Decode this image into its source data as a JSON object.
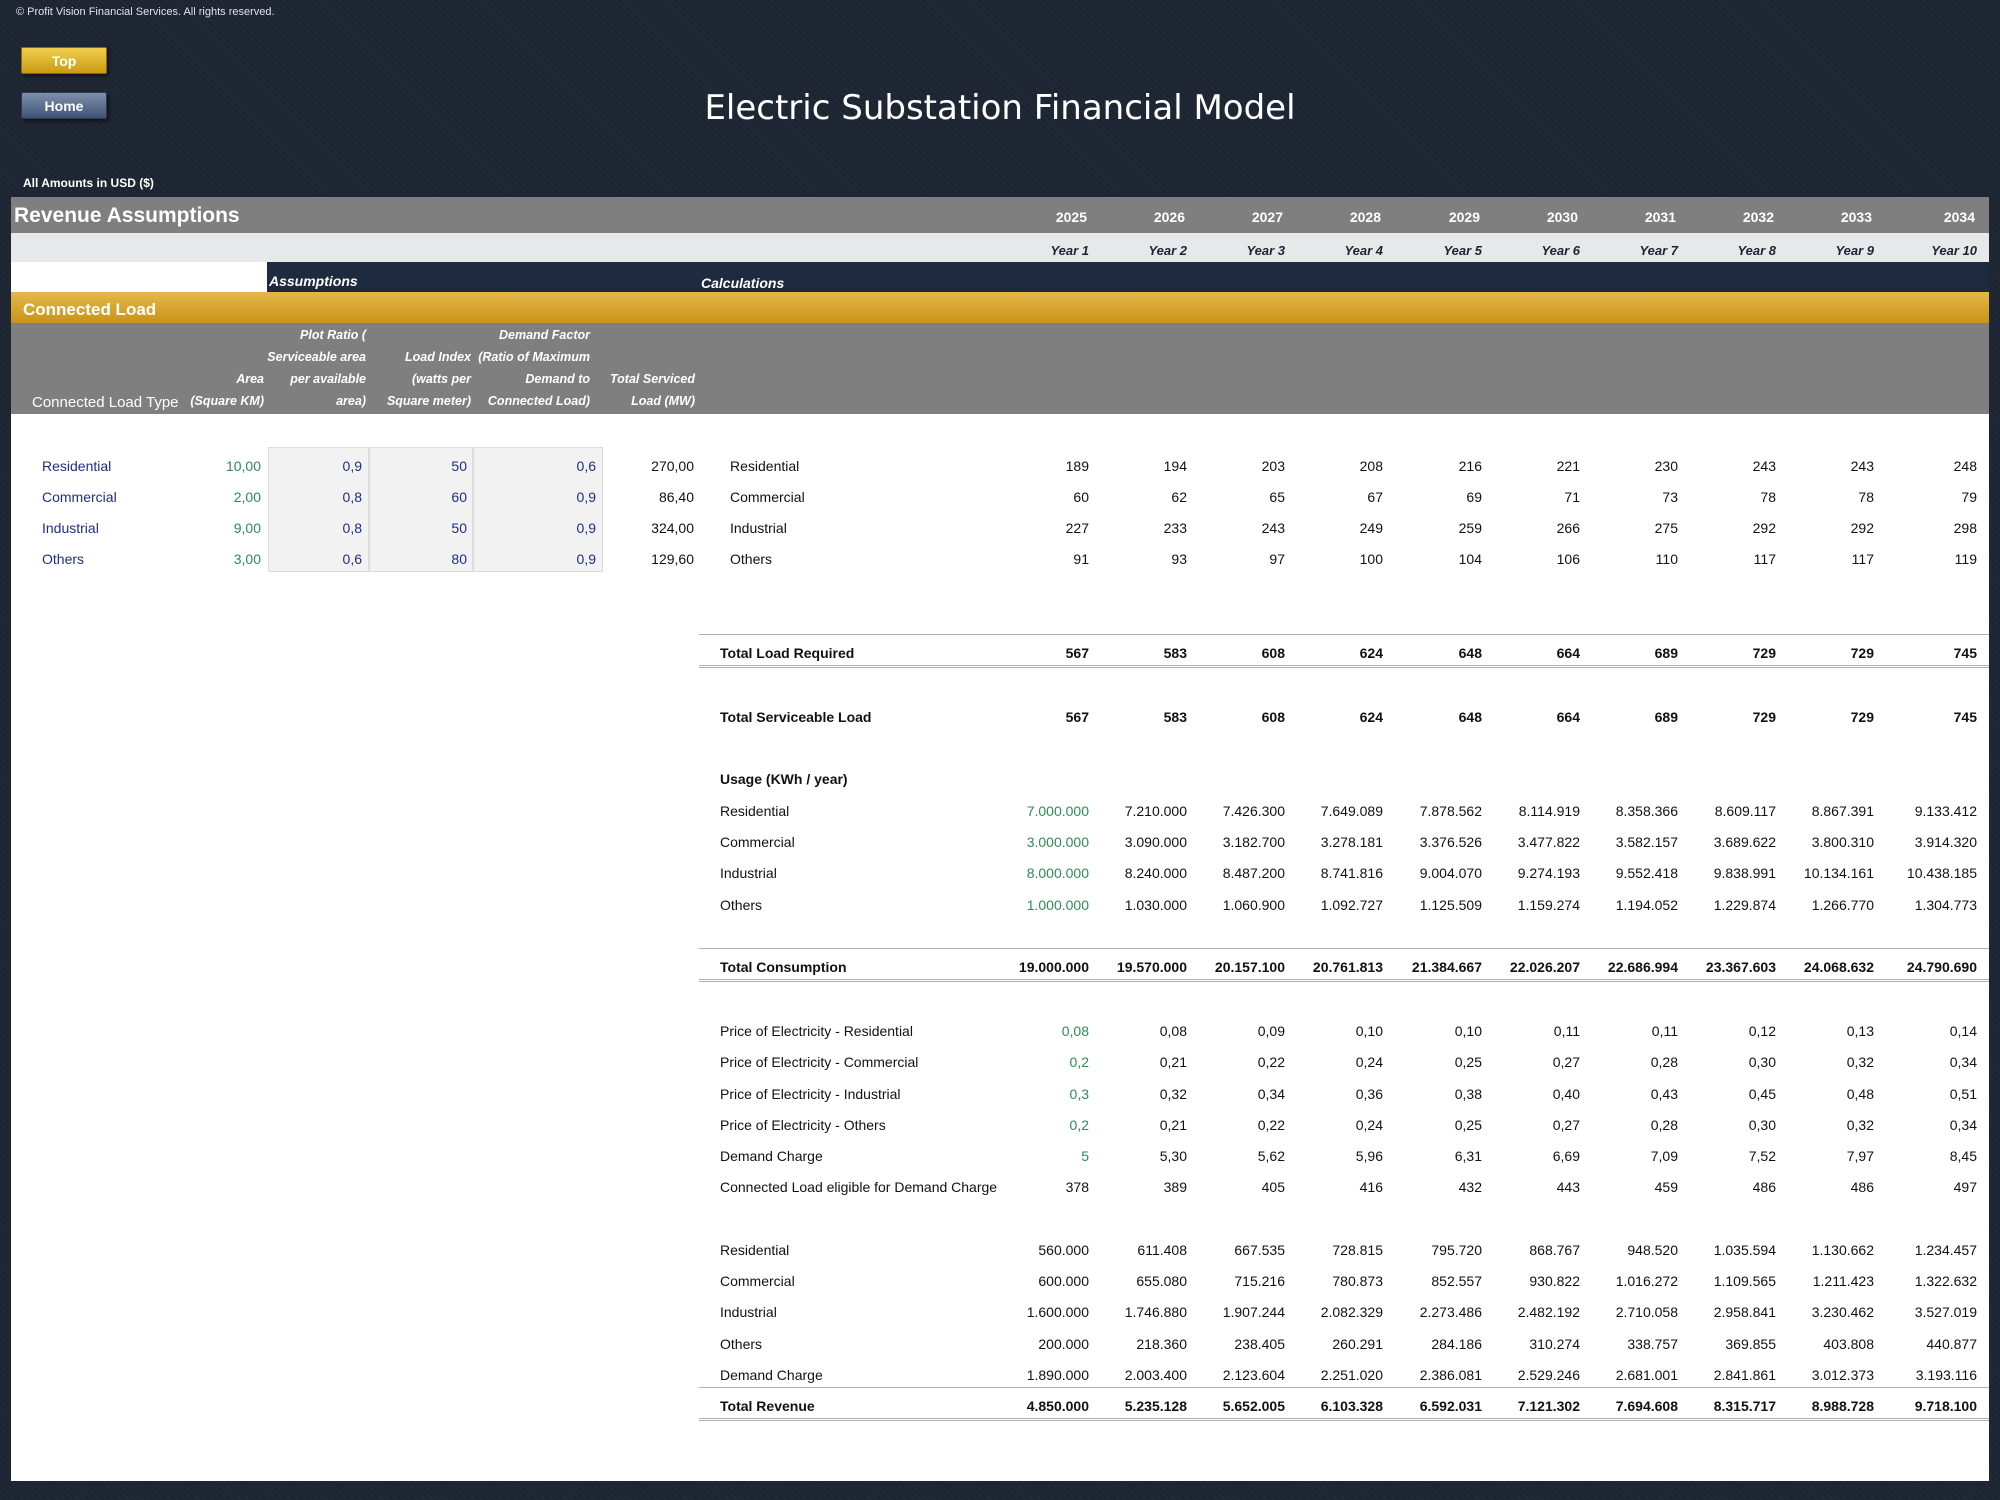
{
  "copyright": "© Profit Vision Financial Services. All rights reserved.",
  "buttons": {
    "top": "Top",
    "home": "Home"
  },
  "title": "Electric Substation Financial Model",
  "amounts_label": "All Amounts in  USD ($)",
  "section_title": "Revenue Assumptions",
  "years": [
    "2025",
    "2026",
    "2027",
    "2028",
    "2029",
    "2030",
    "2031",
    "2032",
    "2033",
    "2034"
  ],
  "year_labels": [
    "Year 1",
    "Year 2",
    "Year 3",
    "Year 4",
    "Year 5",
    "Year 6",
    "Year 7",
    "Year 8",
    "Year 9",
    "Year 10"
  ],
  "assumptions_label": "Assumptions",
  "calculations_label": "Calculations",
  "subsection": "Connected Load",
  "col_headers": {
    "type": "Connected Load Type",
    "area": [
      "Area",
      "(Square KM)"
    ],
    "plot": [
      "Plot Ratio (",
      "Serviceable area",
      "per available",
      "area)"
    ],
    "load_index": [
      "Load Index",
      "(watts per",
      "Square meter)"
    ],
    "demand": [
      "Demand Factor",
      "(Ratio of Maximum",
      "Demand to",
      "Connected Load)"
    ],
    "total": [
      "Total Serviced",
      "Load (MW)"
    ]
  },
  "assumptions": [
    {
      "type": "Residential",
      "area": "10,00",
      "plot": "0,9",
      "index": "50",
      "demand": "0,6",
      "total": "270,00"
    },
    {
      "type": "Commercial",
      "area": "2,00",
      "plot": "0,8",
      "index": "60",
      "demand": "0,9",
      "total": "86,40"
    },
    {
      "type": "Industrial",
      "area": "9,00",
      "plot": "0,8",
      "index": "50",
      "demand": "0,9",
      "total": "324,00"
    },
    {
      "type": "Others",
      "area": "3,00",
      "plot": "0,6",
      "index": "80",
      "demand": "0,9",
      "total": "129,60"
    }
  ],
  "load_rows": [
    {
      "label": "Residential",
      "values": [
        "189",
        "194",
        "203",
        "208",
        "216",
        "221",
        "230",
        "243",
        "243",
        "248"
      ]
    },
    {
      "label": "Commercial",
      "values": [
        "60",
        "62",
        "65",
        "67",
        "69",
        "71",
        "73",
        "78",
        "78",
        "79"
      ]
    },
    {
      "label": "Industrial",
      "values": [
        "227",
        "233",
        "243",
        "249",
        "259",
        "266",
        "275",
        "292",
        "292",
        "298"
      ]
    },
    {
      "label": "Others",
      "values": [
        "91",
        "93",
        "97",
        "100",
        "104",
        "106",
        "110",
        "117",
        "117",
        "119"
      ]
    }
  ],
  "total_load": {
    "label": "Total Load Required",
    "values": [
      "567",
      "583",
      "608",
      "624",
      "648",
      "664",
      "689",
      "729",
      "729",
      "745"
    ]
  },
  "total_serviceable": {
    "label": "Total Serviceable Load",
    "values": [
      "567",
      "583",
      "608",
      "624",
      "648",
      "664",
      "689",
      "729",
      "729",
      "745"
    ]
  },
  "usage_title": "Usage (KWh / year)",
  "usage_rows": [
    {
      "label": "Residential",
      "values": [
        "7.000.000",
        "7.210.000",
        "7.426.300",
        "7.649.089",
        "7.878.562",
        "8.114.919",
        "8.358.366",
        "8.609.117",
        "8.867.391",
        "9.133.412"
      ]
    },
    {
      "label": "Commercial",
      "values": [
        "3.000.000",
        "3.090.000",
        "3.182.700",
        "3.278.181",
        "3.376.526",
        "3.477.822",
        "3.582.157",
        "3.689.622",
        "3.800.310",
        "3.914.320"
      ]
    },
    {
      "label": "Industrial",
      "values": [
        "8.000.000",
        "8.240.000",
        "8.487.200",
        "8.741.816",
        "9.004.070",
        "9.274.193",
        "9.552.418",
        "9.838.991",
        "10.134.161",
        "10.438.185"
      ]
    },
    {
      "label": "Others",
      "values": [
        "1.000.000",
        "1.030.000",
        "1.060.900",
        "1.092.727",
        "1.125.509",
        "1.159.274",
        "1.194.052",
        "1.229.874",
        "1.266.770",
        "1.304.773"
      ]
    }
  ],
  "total_consumption": {
    "label": "Total Consumption",
    "values": [
      "19.000.000",
      "19.570.000",
      "20.157.100",
      "20.761.813",
      "21.384.667",
      "22.026.207",
      "22.686.994",
      "23.367.603",
      "24.068.632",
      "24.790.690"
    ]
  },
  "price_rows": [
    {
      "label": "Price of Electricity - Residential",
      "values": [
        "0,08",
        "0,08",
        "0,09",
        "0,10",
        "0,10",
        "0,11",
        "0,11",
        "0,12",
        "0,13",
        "0,14"
      ]
    },
    {
      "label": "Price of Electricity - Commercial",
      "values": [
        "0,2",
        "0,21",
        "0,22",
        "0,24",
        "0,25",
        "0,27",
        "0,28",
        "0,30",
        "0,32",
        "0,34"
      ]
    },
    {
      "label": "Price of Electricity - Industrial",
      "values": [
        "0,3",
        "0,32",
        "0,34",
        "0,36",
        "0,38",
        "0,40",
        "0,43",
        "0,45",
        "0,48",
        "0,51"
      ]
    },
    {
      "label": "Price of Electricity - Others",
      "values": [
        "0,2",
        "0,21",
        "0,22",
        "0,24",
        "0,25",
        "0,27",
        "0,28",
        "0,30",
        "0,32",
        "0,34"
      ]
    },
    {
      "label": "Demand Charge",
      "values": [
        "5",
        "5,30",
        "5,62",
        "5,96",
        "6,31",
        "6,69",
        "7,09",
        "7,52",
        "7,97",
        "8,45"
      ]
    }
  ],
  "eligible": {
    "label": "Connected Load eligible for Demand Charge",
    "values": [
      "378",
      "389",
      "405",
      "416",
      "432",
      "443",
      "459",
      "486",
      "486",
      "497"
    ]
  },
  "revenue_rows": [
    {
      "label": "Residential",
      "values": [
        "560.000",
        "611.408",
        "667.535",
        "728.815",
        "795.720",
        "868.767",
        "948.520",
        "1.035.594",
        "1.130.662",
        "1.234.457"
      ]
    },
    {
      "label": "Commercial",
      "values": [
        "600.000",
        "655.080",
        "715.216",
        "780.873",
        "852.557",
        "930.822",
        "1.016.272",
        "1.109.565",
        "1.211.423",
        "1.322.632"
      ]
    },
    {
      "label": "Industrial",
      "values": [
        "1.600.000",
        "1.746.880",
        "1.907.244",
        "2.082.329",
        "2.273.486",
        "2.482.192",
        "2.710.058",
        "2.958.841",
        "3.230.462",
        "3.527.019"
      ]
    },
    {
      "label": "Others",
      "values": [
        "200.000",
        "218.360",
        "238.405",
        "260.291",
        "284.186",
        "310.274",
        "338.757",
        "369.855",
        "403.808",
        "440.877"
      ]
    },
    {
      "label": "Demand Charge",
      "values": [
        "1.890.000",
        "2.003.400",
        "2.123.604",
        "2.251.020",
        "2.386.081",
        "2.529.246",
        "2.681.001",
        "2.841.861",
        "3.012.373",
        "3.193.116"
      ]
    }
  ],
  "total_revenue": {
    "label": "Total Revenue",
    "values": [
      "4.850.000",
      "5.235.128",
      "5.652.005",
      "6.103.328",
      "6.592.031",
      "7.121.302",
      "7.694.608",
      "8.315.717",
      "8.988.728",
      "9.718.100"
    ]
  },
  "colors": {
    "gold": "#d4a52a",
    "navy": "#1e2a3f",
    "grey": "#7f7f7f",
    "green_input": "#2e8b57",
    "blue_input": "#1f2e83"
  }
}
